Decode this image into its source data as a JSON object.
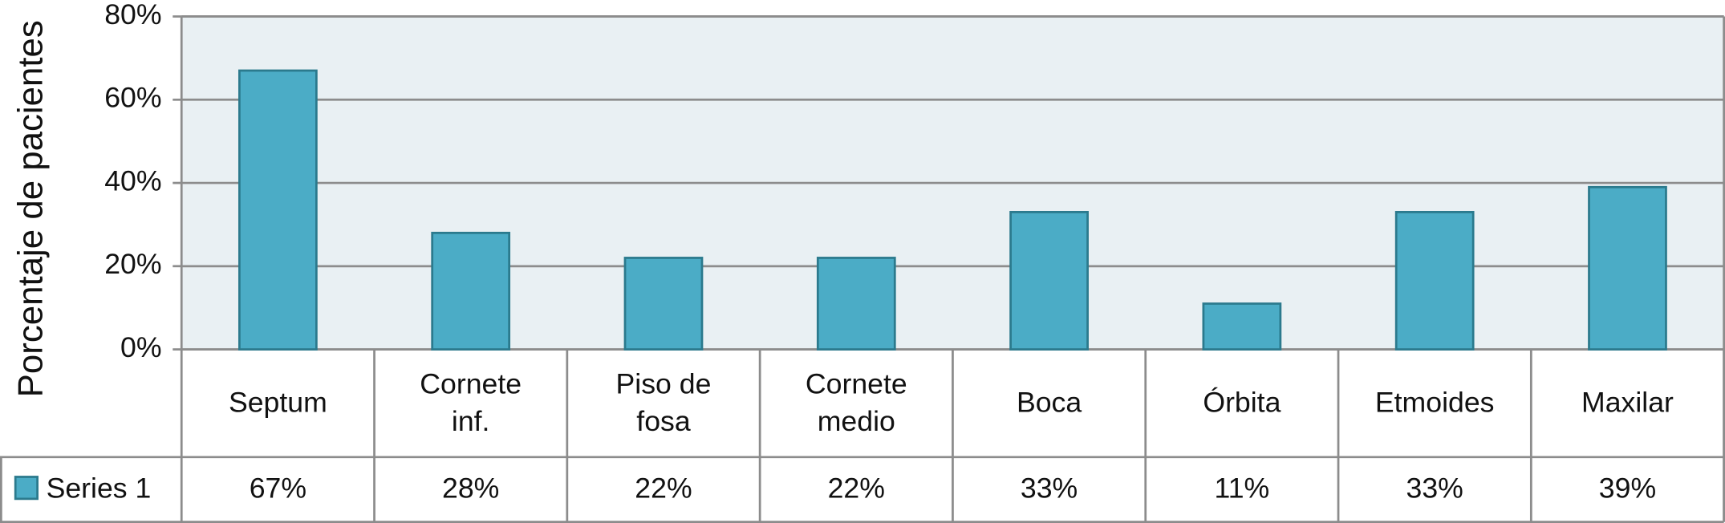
{
  "chart_data": {
    "type": "bar",
    "y_axis_label": "Porcentaje de pacientes",
    "categories": [
      "Septum",
      "Cornete inf.",
      "Piso de fosa",
      "Cornete medio",
      "Boca",
      "Órbita",
      "Etmoides",
      "Maxilar"
    ],
    "series": [
      {
        "name": "Series 1",
        "color": "#4bacc6",
        "values": [
          67,
          28,
          22,
          22,
          33,
          11,
          33,
          39
        ],
        "value_labels": [
          "67%",
          "28%",
          "22%",
          "22%",
          "33%",
          "11%",
          "33%",
          "39%"
        ]
      }
    ],
    "ylim": [
      0,
      80
    ],
    "yticks": [
      {
        "value": 0,
        "label": "0%"
      },
      {
        "value": 20,
        "label": "20%"
      },
      {
        "value": 40,
        "label": "40%"
      },
      {
        "value": 60,
        "label": "60%"
      },
      {
        "value": 80,
        "label": "80%"
      }
    ],
    "grid": true,
    "data_table": true
  }
}
